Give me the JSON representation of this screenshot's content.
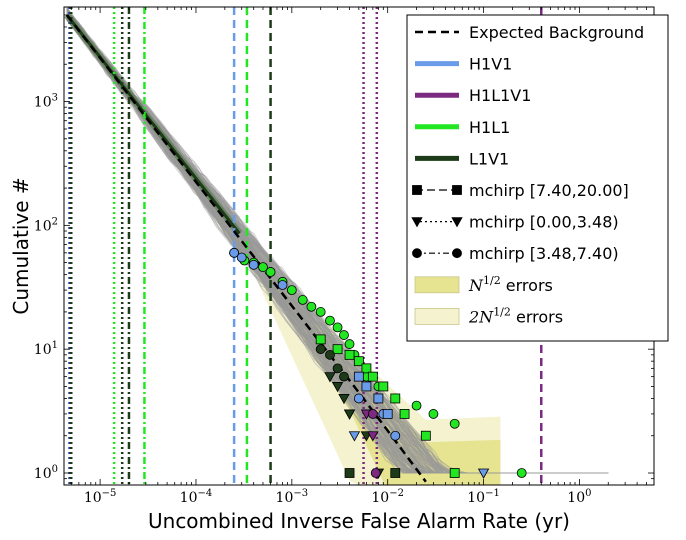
{
  "chart_data": {
    "type": "line",
    "title": "",
    "xlabel": "Uncombined Inverse False Alarm Rate (yr)",
    "ylabel": "Cumulative #",
    "xscale": "log",
    "yscale": "log",
    "xlim": [
      4.2e-06,
      6.0
    ],
    "ylim": [
      0.8,
      5800
    ],
    "x_tick_labels": [
      {
        "base": "10",
        "exp": "−5",
        "value": 1e-05
      },
      {
        "base": "10",
        "exp": "−4",
        "value": 0.0001
      },
      {
        "base": "10",
        "exp": "−3",
        "value": 0.001
      },
      {
        "base": "10",
        "exp": "−2",
        "value": 0.01
      },
      {
        "base": "10",
        "exp": "−1",
        "value": 0.1
      },
      {
        "base": "10",
        "exp": "0",
        "value": 1
      }
    ],
    "y_tick_labels": [
      {
        "base": "10",
        "exp": "0",
        "value": 1
      },
      {
        "base": "10",
        "exp": "1",
        "value": 10
      },
      {
        "base": "10",
        "exp": "2",
        "value": 100
      },
      {
        "base": "10",
        "exp": "3",
        "value": 1000
      }
    ],
    "grid": false,
    "legend_position": "top-right",
    "detector_colors": {
      "H1V1": "#6a9be8",
      "H1L1V1": "#7b2a80",
      "H1L1": "#22e622",
      "L1V1": "#1d3b18"
    },
    "legend": [
      {
        "label": "Expected Background",
        "kind": "dashed-line",
        "color": "#000000"
      },
      {
        "label": "H1V1",
        "kind": "solid-line",
        "color": "#6a9be8"
      },
      {
        "label": "H1L1V1",
        "kind": "solid-line",
        "color": "#7b2a80"
      },
      {
        "label": "H1L1",
        "kind": "solid-line",
        "color": "#22e622"
      },
      {
        "label": "L1V1",
        "kind": "solid-line",
        "color": "#1d3b18"
      },
      {
        "label": "mchirp [7.40,20.00]",
        "kind": "marker-dashed",
        "marker": "square"
      },
      {
        "label": "mchirp [0.00,3.48)",
        "kind": "marker-dotted",
        "marker": "triangle-down"
      },
      {
        "label": "mchirp [3.48,7.40)",
        "kind": "marker-dashdot",
        "marker": "circle"
      },
      {
        "label_math": "N",
        "label_sup": "1/2",
        "label_rest": " errors",
        "kind": "patch",
        "color": "#e6e391"
      },
      {
        "label_math": "2N",
        "label_sup": "1/2",
        "label_rest": " errors",
        "kind": "patch",
        "color": "#f4f2cf"
      }
    ],
    "expected_background": {
      "x": [
        4.5e-06,
        0.0004,
        0.004,
        0.01,
        0.025
      ],
      "y": [
        5000,
        56,
        5.6,
        2.2,
        0.85
      ]
    },
    "vertical_lines": [
      {
        "x": 4.8e-06,
        "style": "dotted",
        "color": "#1e3a8a"
      },
      {
        "x": 5e-06,
        "style": "dotted",
        "color": "#1d3b18"
      },
      {
        "x": 1.4e-05,
        "style": "dotted",
        "color": "#22e622"
      },
      {
        "x": 1.7e-05,
        "style": "dotted",
        "color": "#1d3b18"
      },
      {
        "x": 2e-05,
        "style": "dashdot",
        "color": "#1d3b18"
      },
      {
        "x": 2.9e-05,
        "style": "dashdot",
        "color": "#22e622"
      },
      {
        "x": 0.00025,
        "style": "dashed",
        "color": "#6a9be8"
      },
      {
        "x": 0.00034,
        "style": "dashed",
        "color": "#22e622"
      },
      {
        "x": 0.0006,
        "style": "dashed",
        "color": "#1d3b18"
      },
      {
        "x": 0.0056,
        "style": "dotted",
        "color": "#7b2a80"
      },
      {
        "x": 0.0077,
        "style": "dotted",
        "color": "#7b2a80"
      },
      {
        "x": 0.4,
        "style": "dashed",
        "color": "#7b2a80"
      }
    ],
    "series": [
      {
        "name": "H1L1",
        "marker": "circle",
        "color": "#22e622",
        "x": [
          0.00025,
          0.00032,
          0.0004,
          0.0005,
          0.0006,
          0.0008,
          0.001,
          0.0013,
          0.0016,
          0.002,
          0.0025,
          0.003,
          0.0035,
          0.004,
          0.0045,
          0.005,
          0.006,
          0.008,
          0.012,
          0.02,
          0.03,
          0.05,
          0.25
        ],
        "y": [
          60,
          52,
          50,
          46,
          42,
          35,
          30,
          25,
          22,
          20,
          17,
          15,
          13,
          11,
          9,
          8,
          6,
          5,
          4,
          3.5,
          3,
          2.5,
          1
        ]
      },
      {
        "name": "H1L1",
        "marker": "square",
        "color": "#22e622",
        "x": [
          0.002,
          0.003,
          0.004,
          0.005,
          0.006,
          0.007,
          0.009,
          0.012,
          0.015,
          0.025,
          0.05
        ],
        "y": [
          12,
          10,
          9,
          8,
          7,
          6,
          5,
          4,
          3,
          2,
          1
        ]
      },
      {
        "name": "H1V1",
        "marker": "circle",
        "color": "#6a9be8",
        "x": [
          0.00025,
          0.0003,
          0.0004,
          0.0008,
          0.005,
          0.009,
          0.012
        ],
        "y": [
          60,
          55,
          48,
          33,
          4,
          3,
          2
        ]
      },
      {
        "name": "H1V1",
        "marker": "square",
        "color": "#6a9be8",
        "x": [
          0.005,
          0.006,
          0.008,
          0.01
        ],
        "y": [
          6,
          5,
          4,
          3
        ]
      },
      {
        "name": "H1V1",
        "marker": "triangle-down",
        "color": "#6a9be8",
        "x": [
          0.004,
          0.0045,
          0.1
        ],
        "y": [
          3,
          2,
          1
        ]
      },
      {
        "name": "L1V1",
        "marker": "circle",
        "color": "#1d3b18",
        "x": [
          0.002,
          0.0025,
          0.003,
          0.0035
        ],
        "y": [
          10,
          9,
          7,
          6
        ]
      },
      {
        "name": "L1V1",
        "marker": "triangle-down",
        "color": "#1d3b18",
        "x": [
          0.0025,
          0.003,
          0.0035,
          0.004,
          0.006,
          0.008
        ],
        "y": [
          6,
          5,
          4,
          3,
          2,
          1
        ]
      },
      {
        "name": "L1V1",
        "marker": "square",
        "color": "#1d3b18",
        "x": [
          0.004,
          0.012
        ],
        "y": [
          1,
          1
        ]
      },
      {
        "name": "H1L1V1",
        "marker": "triangle-down",
        "color": "#7b2a80",
        "x": [
          0.006,
          0.007
        ],
        "y": [
          3,
          2
        ]
      },
      {
        "name": "H1L1V1",
        "marker": "circle",
        "color": "#7b2a80",
        "x": [
          0.007,
          0.0075
        ],
        "y": [
          3,
          1
        ]
      }
    ]
  }
}
